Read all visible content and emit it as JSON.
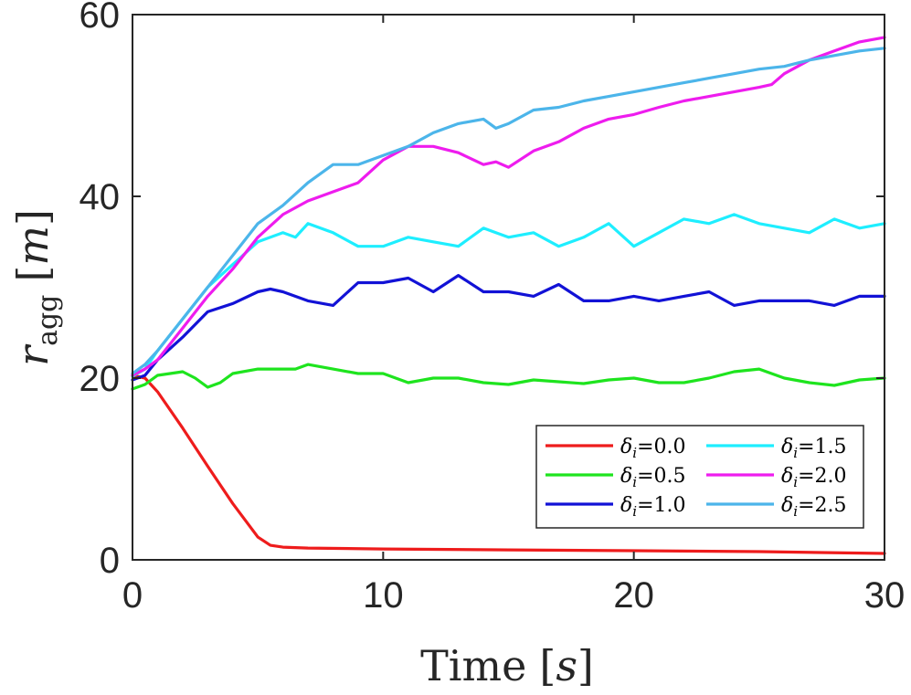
{
  "chart_data": {
    "type": "line",
    "title": "",
    "xlabel": {
      "main": "Time",
      "unit": "s"
    },
    "ylabel": {
      "symbol": "r",
      "subscript": "agg",
      "unit": "m"
    },
    "xlim": [
      0,
      30
    ],
    "ylim": [
      0,
      60
    ],
    "xticks": [
      0,
      10,
      20,
      30
    ],
    "xtick_labels": [
      "0",
      "10",
      "20",
      "30"
    ],
    "yticks": [
      0,
      20,
      40,
      60
    ],
    "ytick_labels": [
      "0",
      "20",
      "40",
      "60"
    ],
    "grid": false,
    "legend_position": "bottom-right",
    "legend_columns": 2,
    "series": [
      {
        "name": "δi=0.0",
        "symbol": "δ",
        "sub": "i",
        "value_text": "=0.0",
        "color": "#ee1c1c",
        "x": [
          0,
          0.5,
          1,
          2,
          3,
          4,
          5,
          5.5,
          6,
          7,
          10,
          15,
          20,
          25,
          30
        ],
        "y": [
          20.3,
          20.0,
          18.5,
          14.5,
          10.3,
          6.2,
          2.5,
          1.6,
          1.4,
          1.3,
          1.2,
          1.1,
          1.0,
          0.9,
          0.7
        ]
      },
      {
        "name": "δi=0.5",
        "symbol": "δ",
        "sub": "i",
        "value_text": "=0.5",
        "color": "#1ee41e",
        "x": [
          0,
          0.5,
          1,
          1.5,
          2,
          2.5,
          3,
          3.5,
          4,
          5,
          6,
          6.5,
          7,
          8,
          9,
          10,
          11,
          12,
          13,
          14,
          15,
          16,
          17,
          18,
          19,
          20,
          21,
          22,
          23,
          24,
          25,
          26,
          27,
          28,
          29,
          30
        ],
        "y": [
          18.8,
          19.3,
          20.3,
          20.5,
          20.7,
          20.0,
          19.0,
          19.5,
          20.5,
          21.0,
          21.0,
          21.0,
          21.5,
          21.0,
          20.5,
          20.5,
          19.5,
          20.0,
          20.0,
          19.5,
          19.3,
          19.8,
          19.6,
          19.4,
          19.8,
          20.0,
          19.5,
          19.5,
          20.0,
          20.7,
          21.0,
          20.0,
          19.5,
          19.2,
          19.8,
          20.0
        ]
      },
      {
        "name": "δi=1.0",
        "symbol": "δ",
        "sub": "i",
        "value_text": "=1.0",
        "color": "#1212d6",
        "x": [
          0,
          0.5,
          1,
          2,
          3,
          4,
          5,
          5.5,
          6,
          7,
          8,
          9,
          10,
          11,
          12,
          13,
          14,
          15,
          16,
          17,
          18,
          19,
          20,
          21,
          22,
          23,
          24,
          25,
          26,
          27,
          28,
          29,
          30
        ],
        "y": [
          19.8,
          20.3,
          22.0,
          24.5,
          27.3,
          28.2,
          29.5,
          29.8,
          29.5,
          28.5,
          28.0,
          30.5,
          30.5,
          31.0,
          29.5,
          31.3,
          29.5,
          29.5,
          29.0,
          30.3,
          28.5,
          28.5,
          29.0,
          28.5,
          29.0,
          29.5,
          28.0,
          28.5,
          28.5,
          28.5,
          28.0,
          29.0,
          29.0
        ]
      },
      {
        "name": "δi=1.5",
        "symbol": "δ",
        "sub": "i",
        "value_text": "=1.5",
        "color": "#1eeeff",
        "x": [
          0,
          0.5,
          1,
          2,
          3,
          4,
          5,
          6,
          6.5,
          7,
          8,
          9,
          10,
          11,
          12,
          13,
          14,
          15,
          16,
          17,
          18,
          19,
          20,
          21,
          22,
          23,
          24,
          25,
          26,
          27,
          28,
          29,
          30
        ],
        "y": [
          20.2,
          21.0,
          23.0,
          26.5,
          30.0,
          32.5,
          35.0,
          36.0,
          35.5,
          37.0,
          36.0,
          34.5,
          34.5,
          35.5,
          35.0,
          34.5,
          36.5,
          35.5,
          36.0,
          34.5,
          35.5,
          37.0,
          34.5,
          36.0,
          37.5,
          37.0,
          38.0,
          37.0,
          36.5,
          36.0,
          37.5,
          36.5,
          37.0
        ]
      },
      {
        "name": "δi=2.0",
        "symbol": "δ",
        "sub": "i",
        "value_text": "=2.0",
        "color": "#ee1cee",
        "x": [
          0,
          0.5,
          1,
          2,
          3,
          4,
          5,
          6,
          7,
          8,
          9,
          10,
          11,
          12,
          13,
          14,
          14.5,
          15,
          16,
          17,
          18,
          19,
          20,
          21,
          22,
          23,
          24,
          25,
          25.5,
          26,
          27,
          28,
          29,
          30
        ],
        "y": [
          20.3,
          21.0,
          22.0,
          25.5,
          29.0,
          32.0,
          35.5,
          38.0,
          39.5,
          40.5,
          41.5,
          44.0,
          45.5,
          45.5,
          44.8,
          43.5,
          43.8,
          43.2,
          45.0,
          46.0,
          47.5,
          48.5,
          49.0,
          49.8,
          50.5,
          51.0,
          51.5,
          52.0,
          52.3,
          53.5,
          55.0,
          56.0,
          57.0,
          57.5
        ]
      },
      {
        "name": "δi=2.5",
        "symbol": "δ",
        "sub": "i",
        "value_text": "=2.5",
        "color": "#4cb5ea",
        "x": [
          0,
          0.5,
          1,
          2,
          3,
          4,
          5,
          6,
          7,
          8,
          9,
          10,
          11,
          12,
          13,
          14,
          14.5,
          15,
          16,
          17,
          18,
          19,
          20,
          21,
          22,
          23,
          24,
          25,
          26,
          27,
          28,
          29,
          30
        ],
        "y": [
          20.5,
          21.5,
          23.0,
          26.5,
          30.0,
          33.5,
          37.0,
          39.0,
          41.5,
          43.5,
          43.5,
          44.5,
          45.5,
          47.0,
          48.0,
          48.5,
          47.5,
          48.0,
          49.5,
          49.8,
          50.5,
          51.0,
          51.5,
          52.0,
          52.5,
          53.0,
          53.5,
          54.0,
          54.3,
          55.0,
          55.5,
          56.0,
          56.3
        ]
      }
    ]
  }
}
